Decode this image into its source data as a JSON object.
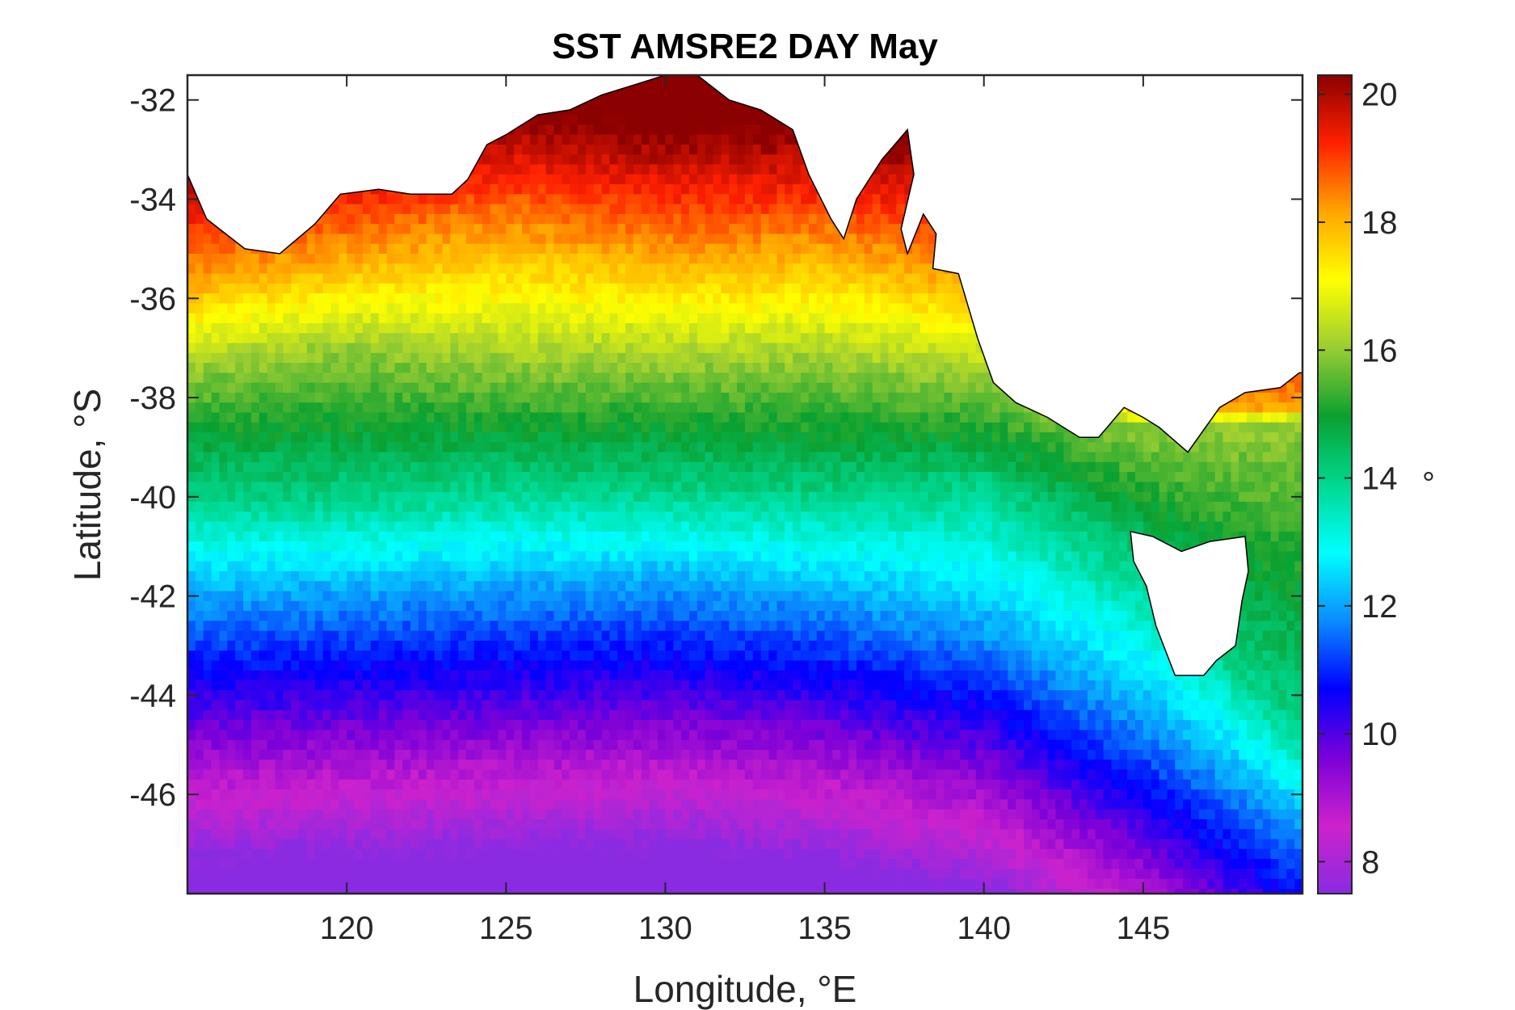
{
  "chart_data": {
    "type": "heatmap",
    "title": "SST AMSRE2 DAY May",
    "xlabel": "Longitude, °E",
    "ylabel": "Latitude, °S",
    "xlim": [
      115,
      150
    ],
    "ylim": [
      -48,
      -31.5
    ],
    "xticks": [
      120,
      125,
      130,
      135,
      140,
      145
    ],
    "yticks": [
      -32,
      -34,
      -36,
      -38,
      -40,
      -42,
      -44,
      -46
    ],
    "colorbar": {
      "label": "°",
      "range": [
        7.5,
        20.3
      ],
      "ticks": [
        8,
        10,
        12,
        14,
        16,
        18,
        20
      ],
      "colormap": [
        "#8a2be2",
        "#cc22cc",
        "#7a00d8",
        "#0000ff",
        "#0a8cff",
        "#00ffff",
        "#00d890",
        "#0aa030",
        "#9acd32",
        "#ffff00",
        "#ffa500",
        "#ff2000",
        "#8b0000"
      ]
    },
    "profiles": {
      "longitude": [
        115,
        120,
        125,
        130,
        135,
        140,
        145,
        150
      ],
      "isotherm_latitude": {
        "12": [
          -42.0,
          -41.9,
          -41.8,
          -41.7,
          -42.0,
          -42.6,
          -44.4,
          -46.6
        ],
        "14": [
          -40.0,
          -40.1,
          -39.8,
          -39.9,
          -40.0,
          -39.8,
          -41.5,
          -44.8
        ],
        "16": [
          -37.4,
          -37.0,
          -37.3,
          -37.3,
          -37.3,
          -37.6,
          -38.6,
          -38.5
        ],
        "18": [
          -35.8,
          -35.3,
          -34.9,
          -35.3,
          -35.2,
          -35.8,
          -38.4,
          -38.4
        ]
      }
    },
    "landmask": "Australian coastline (south-western to south-eastern Australia) and Tasmania",
    "grid": false,
    "legend": "colorbar-right"
  }
}
